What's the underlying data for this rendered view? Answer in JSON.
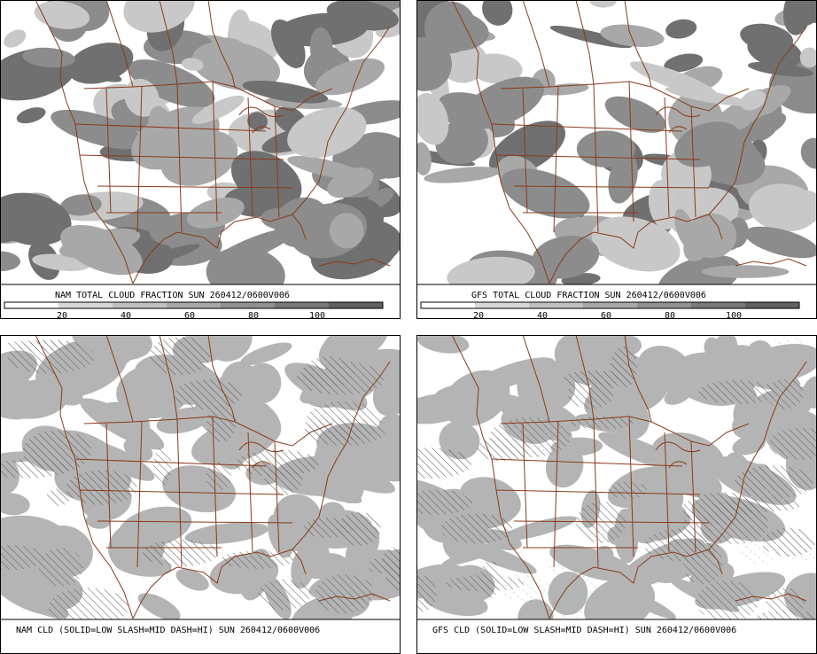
{
  "panels": [
    {
      "title": "NAM TOTAL CLOUD FRACTION SUN 260412/0600V006",
      "colorbar_labels": [
        20,
        40,
        60,
        80,
        100
      ]
    },
    {
      "title": "GFS TOTAL CLOUD FRACTION SUN 260412/0600V006",
      "colorbar_labels": [
        20,
        40,
        60,
        80,
        100
      ]
    },
    {
      "title": "NAM CLD (SOLID=LOW SLASH=MID DASH=HI) SUN 260412/0600V006"
    },
    {
      "title": "GFS CLD (SOLID=LOW SLASH=MID DASH=HI) SUN 260412/0600V006"
    }
  ]
}
